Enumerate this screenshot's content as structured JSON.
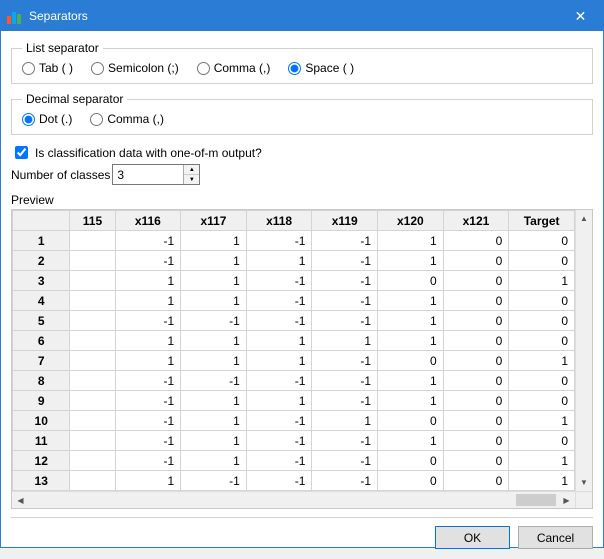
{
  "window": {
    "title": "Separators",
    "accent_color": "#2a7cd4",
    "icon_bars": [
      "#ff5722",
      "#03a9f4",
      "#4caf50"
    ]
  },
  "list_separator": {
    "legend": "List separator",
    "options": [
      {
        "key": "tab",
        "label": "Tab (    )",
        "checked": false
      },
      {
        "key": "semicolon",
        "label": "Semicolon (;)",
        "checked": false
      },
      {
        "key": "comma",
        "label": "Comma (,)",
        "checked": false
      },
      {
        "key": "space",
        "label": "Space ( )",
        "checked": true
      }
    ]
  },
  "decimal_separator": {
    "legend": "Decimal separator",
    "options": [
      {
        "key": "dot",
        "label": "Dot (.)",
        "checked": true
      },
      {
        "key": "comma",
        "label": "Comma (,)",
        "checked": false
      }
    ]
  },
  "classification": {
    "checkbox_label": "Is classification data with one-of-m output?",
    "checked": true,
    "classes_label": "Number of classes",
    "classes_value": "3"
  },
  "preview": {
    "label": "Preview",
    "columns": [
      "",
      "115",
      "x116",
      "x117",
      "x118",
      "x119",
      "x120",
      "x121",
      "Target"
    ],
    "rows": [
      {
        "n": "1",
        "cells": [
          "",
          "-1",
          "1",
          "-1",
          "-1",
          "1",
          "0",
          "0"
        ]
      },
      {
        "n": "2",
        "cells": [
          "",
          "-1",
          "1",
          "1",
          "-1",
          "1",
          "0",
          "0"
        ]
      },
      {
        "n": "3",
        "cells": [
          "",
          "1",
          "1",
          "-1",
          "-1",
          "0",
          "0",
          "1"
        ]
      },
      {
        "n": "4",
        "cells": [
          "",
          "1",
          "1",
          "-1",
          "-1",
          "1",
          "0",
          "0"
        ]
      },
      {
        "n": "5",
        "cells": [
          "",
          "-1",
          "-1",
          "-1",
          "-1",
          "1",
          "0",
          "0"
        ]
      },
      {
        "n": "6",
        "cells": [
          "",
          "1",
          "1",
          "1",
          "1",
          "1",
          "0",
          "0"
        ]
      },
      {
        "n": "7",
        "cells": [
          "",
          "1",
          "1",
          "1",
          "-1",
          "0",
          "0",
          "1"
        ]
      },
      {
        "n": "8",
        "cells": [
          "",
          "-1",
          "-1",
          "-1",
          "-1",
          "1",
          "0",
          "0"
        ]
      },
      {
        "n": "9",
        "cells": [
          "",
          "-1",
          "1",
          "1",
          "-1",
          "1",
          "0",
          "0"
        ]
      },
      {
        "n": "10",
        "cells": [
          "",
          "-1",
          "1",
          "-1",
          "1",
          "0",
          "0",
          "1"
        ]
      },
      {
        "n": "11",
        "cells": [
          "",
          "-1",
          "1",
          "-1",
          "-1",
          "1",
          "0",
          "0"
        ]
      },
      {
        "n": "12",
        "cells": [
          "",
          "-1",
          "1",
          "-1",
          "-1",
          "0",
          "0",
          "1"
        ]
      },
      {
        "n": "13",
        "cells": [
          "",
          "1",
          "-1",
          "-1",
          "-1",
          "0",
          "0",
          "1"
        ]
      }
    ]
  },
  "buttons": {
    "ok": "OK",
    "cancel": "Cancel"
  }
}
